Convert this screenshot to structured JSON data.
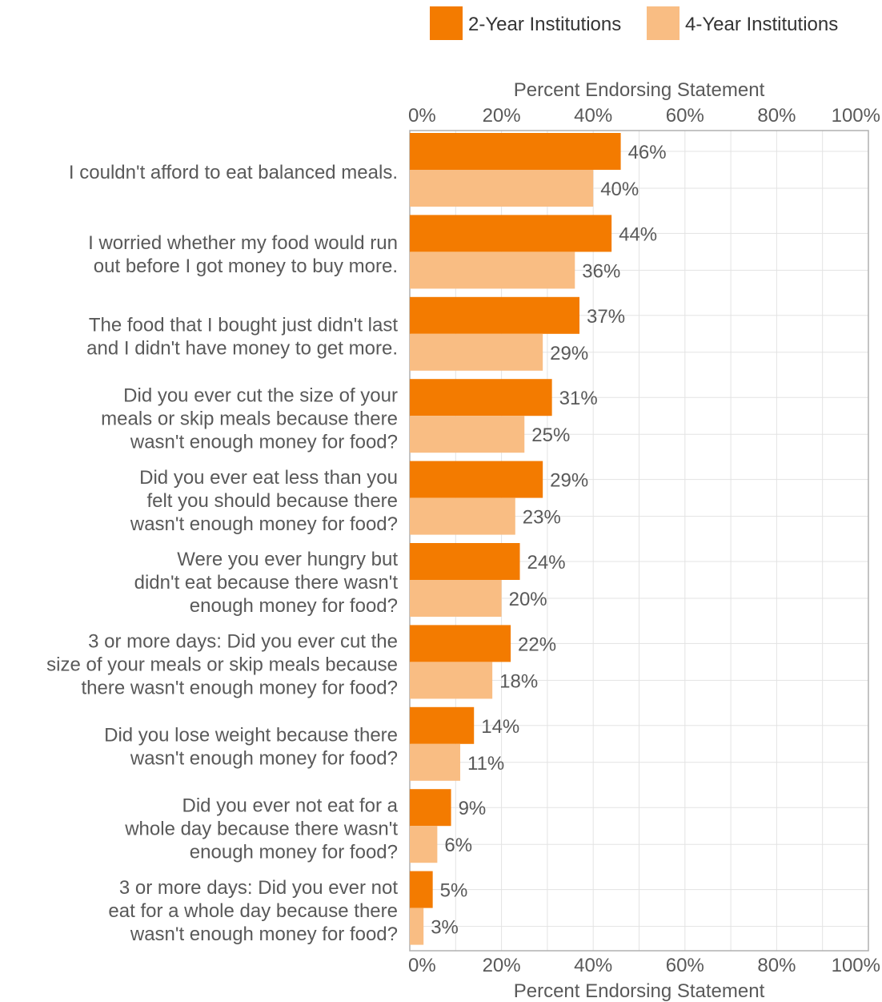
{
  "chart_data": {
    "type": "bar",
    "orientation": "horizontal",
    "xlabel": "Percent Endorsing Statement",
    "xlim": [
      0,
      100
    ],
    "x_ticks": [
      "0%",
      "20%",
      "40%",
      "60%",
      "80%",
      "100%"
    ],
    "x_tick_values": [
      0,
      20,
      40,
      60,
      80,
      100
    ],
    "grid": true,
    "legend_placement": "top-right",
    "categories": [
      [
        "I couldn't afford to eat balanced meals."
      ],
      [
        "I worried whether my food would run",
        "out before I got money to buy more."
      ],
      [
        "The food that I bought just didn't last",
        "and I didn't have money to get more."
      ],
      [
        "Did you ever cut the size of your",
        "meals or skip meals because there",
        "wasn't enough money for food?"
      ],
      [
        "Did you ever eat less than you",
        "felt you should because there",
        "wasn't enough money for food?"
      ],
      [
        "Were you ever hungry but",
        "didn't eat because there wasn't",
        "enough money for food?"
      ],
      [
        "3 or more days: Did you ever cut the",
        "size of your meals or skip meals because",
        "there wasn't enough money for food?"
      ],
      [
        "Did you lose weight because there",
        "wasn't enough money for food?"
      ],
      [
        "Did you ever not eat for a",
        "whole day because there wasn't",
        "enough money for food?"
      ],
      [
        "3 or more days: Did you ever not",
        "eat for a whole day because there",
        "wasn't enough money for food?"
      ]
    ],
    "series": [
      {
        "name": "2-Year Institutions",
        "color": "#f37b00",
        "values": [
          46,
          44,
          37,
          31,
          29,
          24,
          22,
          14,
          9,
          5
        ],
        "labels": [
          "46%",
          "44%",
          "37%",
          "31%",
          "29%",
          "24%",
          "22%",
          "14%",
          "9%",
          "5%"
        ]
      },
      {
        "name": "4-Year Institutions",
        "color": "#f9bd83",
        "values": [
          40,
          36,
          29,
          25,
          23,
          20,
          18,
          11,
          6,
          3
        ],
        "labels": [
          "40%",
          "36%",
          "29%",
          "25%",
          "23%",
          "20%",
          "18%",
          "11%",
          "6%",
          "3%"
        ]
      }
    ]
  }
}
